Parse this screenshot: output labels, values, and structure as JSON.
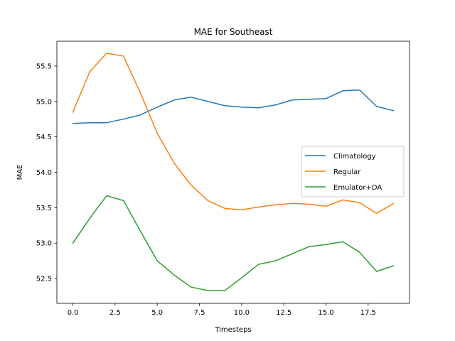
{
  "chart_data": {
    "type": "line",
    "title": "MAE for Southeast",
    "xlabel": "Timesteps",
    "ylabel": "MAE",
    "xlim": [
      -0.95,
      19.95
    ],
    "ylim": [
      52.15,
      55.85
    ],
    "xticks": [
      0.0,
      2.5,
      5.0,
      7.5,
      10.0,
      12.5,
      15.0,
      17.5
    ],
    "xtick_labels": [
      "0.0",
      "2.5",
      "5.0",
      "7.5",
      "10.0",
      "12.5",
      "15.0",
      "17.5"
    ],
    "yticks": [
      52.5,
      53.0,
      53.5,
      54.0,
      54.5,
      55.0,
      55.5
    ],
    "ytick_labels": [
      "52.5",
      "53.0",
      "53.5",
      "54.0",
      "54.5",
      "55.0",
      "55.5"
    ],
    "grid": false,
    "legend_position": "center-right",
    "x": [
      0,
      1,
      2,
      3,
      4,
      5,
      6,
      7,
      8,
      9,
      10,
      11,
      12,
      13,
      14,
      15,
      16,
      17,
      18,
      19
    ],
    "series": [
      {
        "name": "Climatology",
        "color": "#1f77b4",
        "values": [
          54.69,
          54.7,
          54.7,
          54.75,
          54.81,
          54.92,
          55.02,
          55.06,
          55.0,
          54.94,
          54.92,
          54.91,
          54.95,
          55.02,
          55.03,
          55.04,
          55.15,
          55.16,
          54.93,
          54.87
        ]
      },
      {
        "name": "Regular",
        "color": "#ff7f0e",
        "values": [
          54.85,
          55.42,
          55.68,
          55.64,
          55.12,
          54.55,
          54.13,
          53.82,
          53.6,
          53.49,
          53.47,
          53.51,
          53.54,
          53.56,
          53.55,
          53.52,
          53.61,
          53.57,
          53.42,
          53.56
        ]
      },
      {
        "name": "Emulator+DA",
        "color": "#2ca02c",
        "values": [
          53.0,
          53.35,
          53.67,
          53.6,
          53.17,
          52.75,
          52.55,
          52.38,
          52.33,
          52.33,
          52.51,
          52.7,
          52.75,
          52.85,
          52.95,
          52.98,
          53.02,
          52.87,
          52.6,
          52.68
        ]
      }
    ]
  }
}
